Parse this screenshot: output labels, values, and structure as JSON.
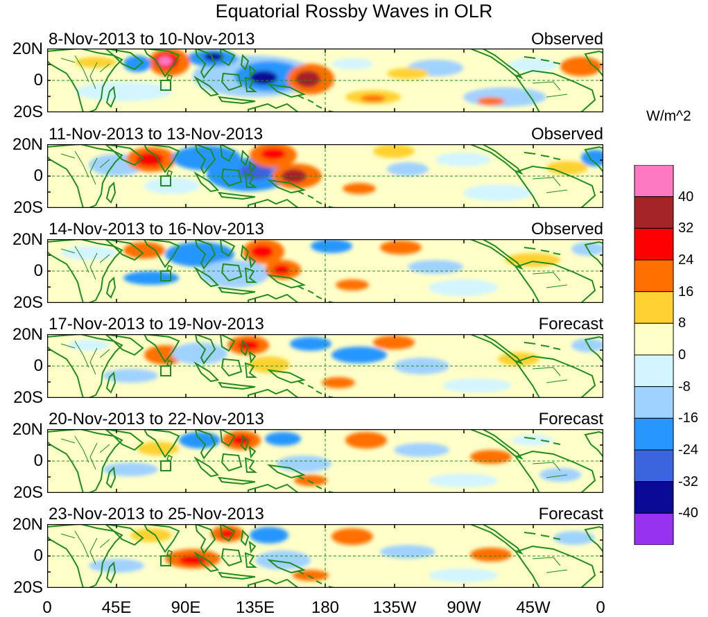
{
  "title": "Equatorial Rossby Waves in OLR",
  "units": "W/m^2",
  "lat_labels": [
    "20N",
    "0",
    "20S"
  ],
  "lon_labels": [
    "0",
    "45E",
    "90E",
    "135E",
    "180",
    "135W",
    "90W",
    "45W",
    "0"
  ],
  "panels": [
    {
      "dates": "8-Nov-2013 to 10-Nov-2013",
      "status": "Observed"
    },
    {
      "dates": "11-Nov-2013 to 13-Nov-2013",
      "status": "Observed"
    },
    {
      "dates": "14-Nov-2013 to 16-Nov-2013",
      "status": "Observed"
    },
    {
      "dates": "17-Nov-2013 to 19-Nov-2013",
      "status": "Forecast"
    },
    {
      "dates": "20-Nov-2013 to 22-Nov-2013",
      "status": "Forecast"
    },
    {
      "dates": "23-Nov-2013 to 25-Nov-2013",
      "status": "Forecast"
    }
  ],
  "colorbar": {
    "labels": [
      "40",
      "32",
      "24",
      "16",
      "8",
      "0",
      "-8",
      "-16",
      "-24",
      "-32",
      "-40"
    ],
    "colors": [
      "#ff78c0",
      "#a42428",
      "#ff0000",
      "#ff7000",
      "#ffd232",
      "#ffffc8",
      "#d2f5ff",
      "#a0d2ff",
      "#2896ff",
      "#3c64dc",
      "#0a0a96",
      "#9632f0"
    ]
  },
  "colors": {
    "coast": "#1e8c1e",
    "equator": "#1e8c1e"
  }
}
